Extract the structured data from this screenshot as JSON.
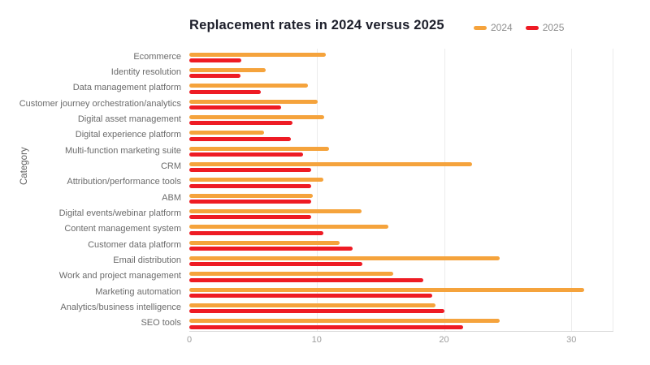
{
  "title": "Replacement rates in 2024 versus 2025",
  "ylabel": "Category",
  "legend": {
    "items": [
      {
        "label": "2024",
        "color": "#F5A33C"
      },
      {
        "label": "2025",
        "color": "#EE1B24"
      }
    ]
  },
  "chart_data": {
    "type": "bar",
    "orientation": "horizontal",
    "title": "Replacement rates in 2024 versus 2025",
    "xlabel": "",
    "ylabel": "Category",
    "grid": true,
    "legend_position": "top-right",
    "xticks": [
      0,
      10,
      20,
      30
    ],
    "xlim": [
      0,
      33.3
    ],
    "categories": [
      "Ecommerce",
      "Identity resolution",
      "Data management platform",
      "Customer journey orchestration/analytics",
      "Digital asset management",
      "Digital experience platform",
      "Multi-function marketing suite",
      "CRM",
      "Attribution/performance tools",
      "ABM",
      "Digital events/webinar platform",
      "Content management system",
      "Customer data platform",
      "Email distribution",
      "Work and project management",
      "Marketing automation",
      "Analytics/business intelligence",
      "SEO tools"
    ],
    "series": [
      {
        "name": "2024",
        "color": "#F5A33C",
        "values": [
          10.7,
          6.0,
          9.3,
          10.1,
          10.6,
          5.9,
          11.0,
          22.2,
          10.5,
          9.7,
          13.5,
          15.6,
          11.8,
          24.4,
          16.0,
          31.0,
          19.3,
          24.4
        ]
      },
      {
        "name": "2025",
        "color": "#EE1B24",
        "values": [
          4.1,
          4.0,
          5.6,
          7.2,
          8.1,
          8.0,
          8.9,
          9.6,
          9.6,
          9.6,
          9.6,
          10.5,
          12.8,
          13.6,
          18.4,
          19.1,
          20.0,
          21.5
        ]
      }
    ]
  }
}
